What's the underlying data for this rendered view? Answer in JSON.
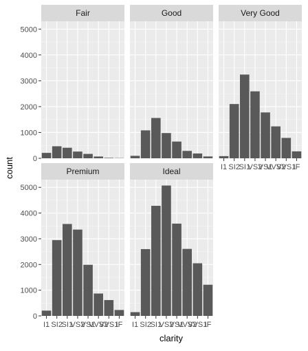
{
  "chart_data": {
    "type": "bar",
    "facet_by": "cut",
    "xlabel": "clarity",
    "ylabel": "count",
    "ylim": [
      0,
      5300
    ],
    "yticks": [
      0,
      1000,
      2000,
      3000,
      4000,
      5000
    ],
    "grid": true,
    "categories": [
      "I1",
      "SI2",
      "SI1",
      "VS2",
      "VS1",
      "VVS2",
      "VVS1",
      "IF"
    ],
    "category_tick_labels": [
      "I1",
      "SI2",
      "SI1",
      "VS2",
      "VS1",
      "VVS2",
      "VVS1",
      "IF"
    ],
    "panels": [
      {
        "name": "Fair",
        "values": [
          210,
          466,
          408,
          261,
          170,
          69,
          17,
          9
        ]
      },
      {
        "name": "Good",
        "values": [
          96,
          1081,
          1560,
          978,
          648,
          286,
          186,
          71
        ]
      },
      {
        "name": "Very Good",
        "values": [
          84,
          2100,
          3240,
          2591,
          1775,
          1235,
          789,
          268
        ]
      },
      {
        "name": "Premium",
        "values": [
          205,
          2949,
          3575,
          3357,
          1989,
          870,
          616,
          230
        ]
      },
      {
        "name": "Ideal",
        "values": [
          146,
          2598,
          4282,
          5071,
          3589,
          2606,
          2047,
          1212
        ]
      }
    ],
    "colors": {
      "bar": "#595959",
      "panel_bg": "#ebebeb",
      "strip_bg": "#d9d9d9",
      "grid": "#ffffff",
      "text": "#4d4d4d"
    }
  }
}
